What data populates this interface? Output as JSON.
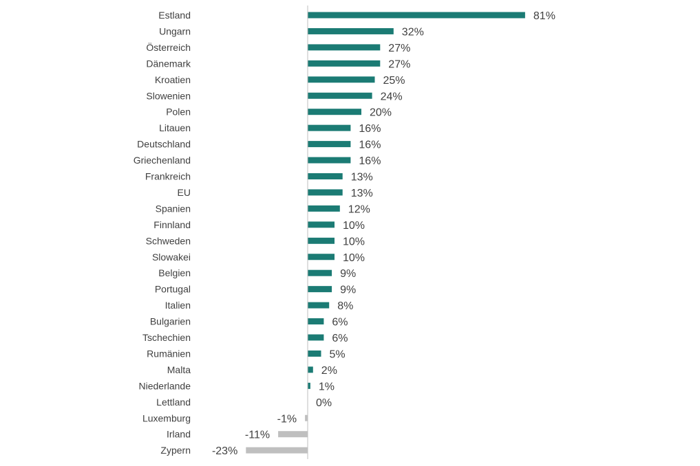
{
  "chart_data": {
    "type": "bar",
    "orientation": "horizontal",
    "title": "",
    "xlabel": "",
    "ylabel": "",
    "grid": false,
    "legend": "none",
    "categories": [
      "Estland",
      "Ungarn",
      "Österreich",
      "Dänemark",
      "Kroatien",
      "Slowenien",
      "Polen",
      "Litauen",
      "Deutschland",
      "Griechenland",
      "Frankreich",
      "EU",
      "Spanien",
      "Finnland",
      "Schweden",
      "Slowakei",
      "Belgien",
      "Portugal",
      "Italien",
      "Bulgarien",
      "Tschechien",
      "Rumänien",
      "Malta",
      "Niederlande",
      "Lettland",
      "Luxemburg",
      "Irland",
      "Zypern"
    ],
    "values": [
      81,
      32,
      27,
      27,
      25,
      24,
      20,
      16,
      16,
      16,
      13,
      13,
      12,
      10,
      10,
      10,
      9,
      9,
      8,
      6,
      6,
      5,
      2,
      1,
      0,
      -1,
      -11,
      -23
    ],
    "labels": [
      "81%",
      "32%",
      "27%",
      "27%",
      "25%",
      "24%",
      "20%",
      "16%",
      "16%",
      "16%",
      "13%",
      "13%",
      "12%",
      "10%",
      "10%",
      "10%",
      "9%",
      "9%",
      "8%",
      "6%",
      "6%",
      "5%",
      "2%",
      "1%",
      "0%",
      "-1%",
      "-11%",
      "-23%"
    ],
    "colors": {
      "positive": "#1b7b74",
      "negative": "#bfbfbf",
      "axis": "#bfbfbf",
      "text": "#404040"
    }
  }
}
